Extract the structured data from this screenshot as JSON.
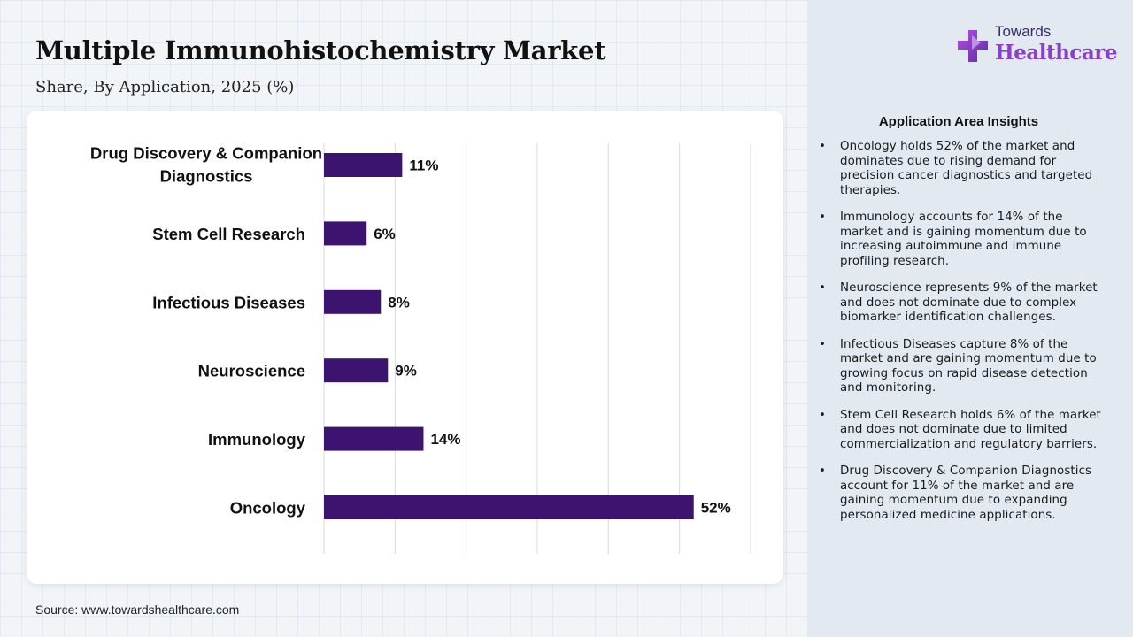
{
  "header": {
    "title": "Multiple Immunohistochemistry Market",
    "subtitle": "Share, By Application, 2025 (%)"
  },
  "brand": {
    "top": "Towards",
    "bottom": "Healthcare",
    "icon": "plus-cross-logo-icon"
  },
  "colors": {
    "bar": "#3c1470",
    "brand_purple": "#8a3fc9",
    "panel_bg": "#e3e9f1"
  },
  "chart_data": {
    "type": "bar",
    "orientation": "horizontal",
    "categories": [
      "Drug Discovery & Companion Diagnostics",
      "Stem Cell Research",
      "Infectious Diseases",
      "Neuroscience",
      "Immunology",
      "Oncology"
    ],
    "values": [
      11,
      6,
      8,
      9,
      14,
      52
    ],
    "value_labels": [
      "11%",
      "6%",
      "8%",
      "9%",
      "14%",
      "52%"
    ],
    "xlim": [
      0,
      60
    ],
    "grid": true,
    "legend": "none"
  },
  "source": "Source: www.towardshealthcare.com",
  "insights": {
    "title": "Application Area Insights",
    "bullet": "•",
    "items": [
      "Oncology holds 52% of the market and dominates due to rising demand for precision cancer diagnostics and targeted therapies.",
      "Immunology accounts for 14% of the market and is gaining momentum due to increasing autoimmune and immune profiling research.",
      "Neuroscience represents 9% of the market and does not dominate due to complex biomarker identification challenges.",
      "Infectious Diseases capture 8% of the market and are gaining momentum due to growing focus on rapid disease detection and monitoring.",
      "Stem Cell Research holds 6% of the market and does not dominate due to limited commercialization and regulatory barriers.",
      "Drug Discovery & Companion Diagnostics account for 11% of the market and are gaining momentum due to expanding personalized medicine applications."
    ]
  }
}
